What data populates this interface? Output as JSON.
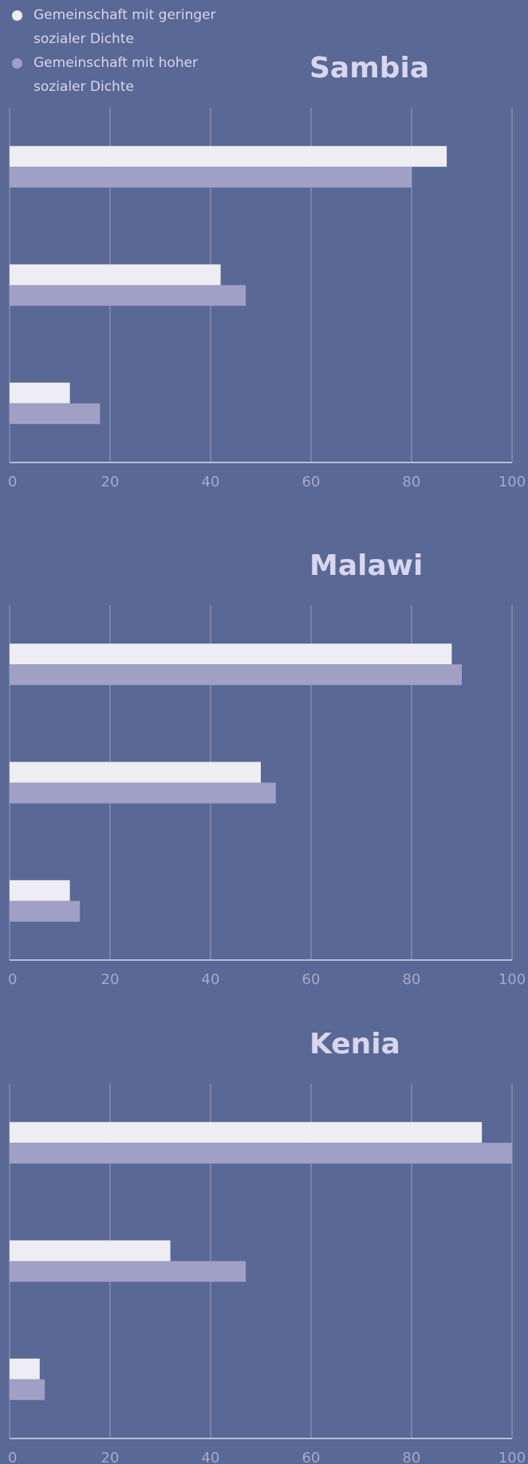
{
  "legend": {
    "series": [
      {
        "name": "Gemeinschaft mit geringer sozialer Dichte",
        "color": "#eeedf3"
      },
      {
        "name": "Gemeinschaft mit hoher sozialer Dichte",
        "color": "#a09fc5"
      }
    ]
  },
  "chart_data": [
    {
      "type": "bar",
      "orientation": "horizontal",
      "title": "Sambia",
      "categories": [
        null,
        null,
        null
      ],
      "series": [
        {
          "values": [
            87,
            42,
            12
          ]
        },
        {
          "values": [
            80,
            47,
            18
          ]
        }
      ],
      "xlim": [
        0,
        100
      ],
      "xticks": [
        0,
        20,
        40,
        60,
        80,
        100
      ],
      "grid": true
    },
    {
      "type": "bar",
      "orientation": "horizontal",
      "title": "Malawi",
      "categories": [
        null,
        null,
        null
      ],
      "series": [
        {
          "values": [
            88,
            50,
            12
          ]
        },
        {
          "values": [
            90,
            53,
            14
          ]
        }
      ],
      "xlim": [
        0,
        100
      ],
      "xticks": [
        0,
        20,
        40,
        60,
        80,
        100
      ],
      "grid": true
    },
    {
      "type": "bar",
      "orientation": "horizontal",
      "title": "Kenia",
      "categories": [
        null,
        null,
        null
      ],
      "series": [
        {
          "values": [
            94,
            32,
            6
          ]
        },
        {
          "values": [
            100,
            47,
            7
          ]
        }
      ],
      "xlim": [
        0,
        100
      ],
      "xticks": [
        0,
        20,
        40,
        60,
        80,
        100
      ],
      "grid": true
    }
  ]
}
